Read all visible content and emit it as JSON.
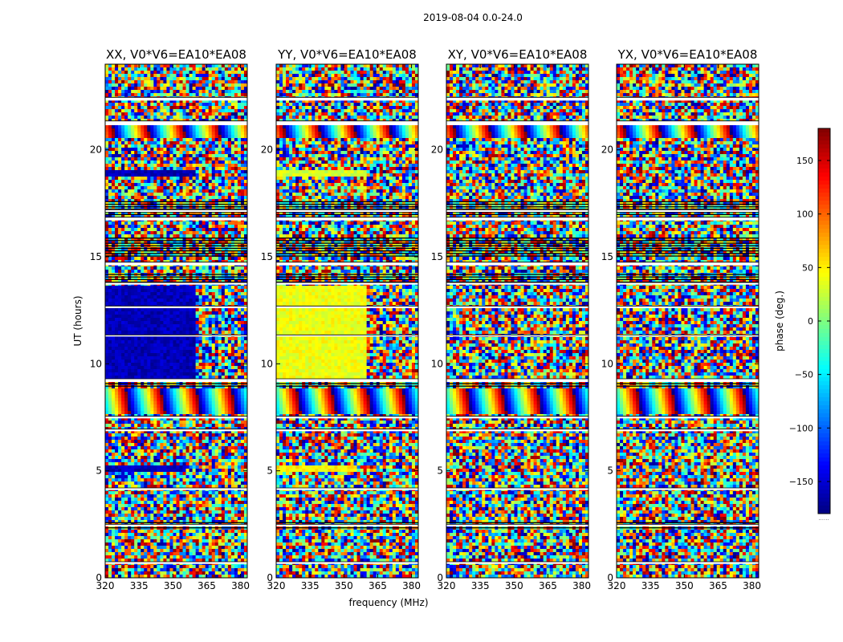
{
  "figure": {
    "suptitle": "2019-08-04 0.0-24.0",
    "xlabel": "frequency (MHz)",
    "ylabel": "UT (hours)"
  },
  "colorbar": {
    "label": "phase (deg.)",
    "ticks": [
      150,
      100,
      50,
      0,
      -50,
      -100,
      -150
    ],
    "tick_labels": [
      "150",
      "100",
      "50",
      "0",
      "−50",
      "−100",
      "−150"
    ],
    "range": [
      -180,
      180
    ],
    "colormap": "jet",
    "colors": [
      "#00007f",
      "#0000ff",
      "#007fff",
      "#00ffff",
      "#7fff7f",
      "#ffff00",
      "#ff7f00",
      "#ff0000",
      "#7f0000"
    ],
    "corner_mark": "......"
  },
  "chart_data": [
    {
      "type": "heatmap",
      "title": "XX, V0*V6=EA10*EA08",
      "xlim": [
        320,
        383
      ],
      "ylim": [
        0,
        24
      ],
      "xticks": [
        320,
        335,
        350,
        365,
        380
      ],
      "yticks": [
        0,
        5,
        10,
        15,
        20
      ],
      "z_description_regions": [
        {
          "t_start": 9.3,
          "t_end": 13.6,
          "f_start": 320,
          "f_end": 360,
          "phase_deg": -160
        },
        {
          "t_start": 18.8,
          "t_end": 19.1,
          "f_start": 320,
          "f_end": 360,
          "phase_deg": -160
        },
        {
          "t_start": 5.0,
          "t_end": 5.3,
          "f_start": 320,
          "f_end": 356,
          "phase_deg": -160
        }
      ]
    },
    {
      "type": "heatmap",
      "title": "YY, V0*V6=EA10*EA08",
      "xlim": [
        320,
        383
      ],
      "ylim": [
        0,
        24
      ],
      "xticks": [
        320,
        335,
        350,
        365,
        380
      ],
      "yticks": [
        0,
        5,
        10,
        15,
        20
      ],
      "z_description_regions": [
        {
          "t_start": 9.3,
          "t_end": 13.6,
          "f_start": 320,
          "f_end": 360,
          "phase_deg": 40
        },
        {
          "t_start": 18.8,
          "t_end": 19.1,
          "f_start": 320,
          "f_end": 360,
          "phase_deg": 30
        },
        {
          "t_start": 5.0,
          "t_end": 5.3,
          "f_start": 320,
          "f_end": 356,
          "phase_deg": 50
        }
      ]
    },
    {
      "type": "heatmap",
      "title": "XY, V0*V6=EA10*EA08",
      "xlim": [
        320,
        383
      ],
      "ylim": [
        0,
        24
      ],
      "xticks": [
        320,
        335,
        350,
        365,
        380
      ],
      "yticks": [
        0,
        5,
        10,
        15,
        20
      ],
      "z_description_regions": []
    },
    {
      "type": "heatmap",
      "title": "YX, V0*V6=EA10*EA08",
      "xlim": [
        320,
        383
      ],
      "ylim": [
        0,
        24
      ],
      "xticks": [
        320,
        335,
        350,
        365,
        380
      ],
      "yticks": [
        0,
        5,
        10,
        15,
        20
      ],
      "z_description_regions": []
    }
  ],
  "flagged_time_gaps_hours": [
    [
      21.15,
      21.35
    ],
    [
      22.3,
      22.45
    ],
    [
      16.7,
      16.85
    ],
    [
      17.1,
      17.2
    ],
    [
      14.6,
      14.75
    ],
    [
      13.7,
      13.8
    ],
    [
      12.6,
      12.7
    ],
    [
      11.3,
      11.35
    ],
    [
      9.15,
      9.3
    ],
    [
      7.45,
      7.55
    ],
    [
      6.85,
      6.95
    ],
    [
      4.1,
      4.2
    ],
    [
      2.4,
      2.5
    ],
    [
      0.65,
      0.75
    ]
  ],
  "dense_black_bands_hours": [
    [
      16.9,
      17.6
    ],
    [
      15.0,
      15.9
    ],
    [
      13.8,
      14.2
    ],
    [
      8.9,
      9.1
    ],
    [
      2.3,
      2.6
    ]
  ]
}
